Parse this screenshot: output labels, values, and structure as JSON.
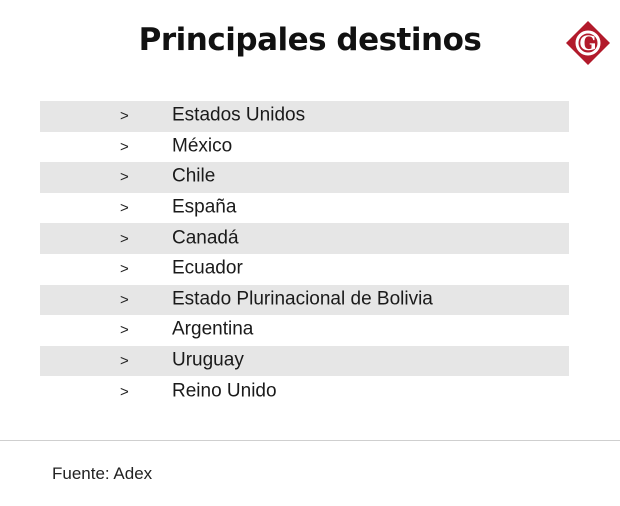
{
  "title": "Principales destinos",
  "logo": {
    "letter": "G",
    "color": "#b21a2b"
  },
  "list": {
    "bullet": ">",
    "items": [
      "Estados Unidos",
      "México",
      "Chile",
      "España",
      "Canadá",
      "Ecuador",
      "Estado Plurinacional de Bolivia",
      "Argentina",
      "Uruguay",
      "Reino Unido"
    ]
  },
  "source": "Fuente: Adex",
  "colors": {
    "row_shade": "#e6e6e6",
    "text": "#1a1a1a"
  }
}
